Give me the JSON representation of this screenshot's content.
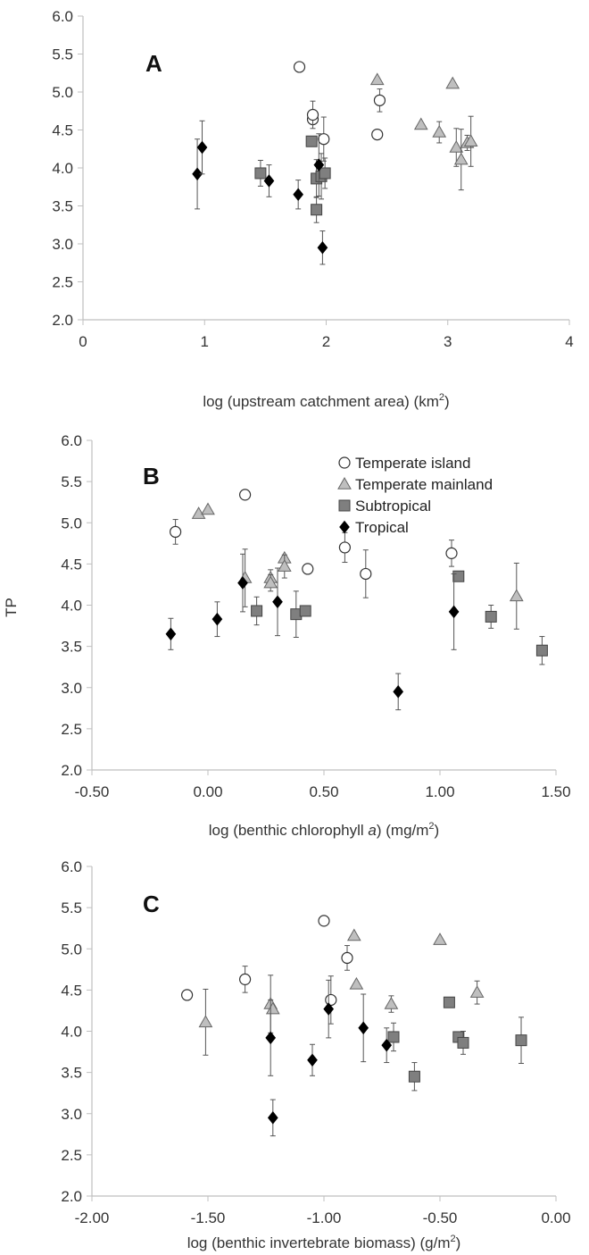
{
  "legend": [
    {
      "name": "Temperate island",
      "marker": "circle",
      "color": "#ffffff"
    },
    {
      "name": "Temperate mainland",
      "marker": "triangle",
      "color": "#bfbfbf"
    },
    {
      "name": "Subtropical",
      "marker": "square",
      "color": "#7f7f7f"
    },
    {
      "name": "Tropical",
      "marker": "diamond",
      "color": "#000000"
    }
  ],
  "chart_data": [
    {
      "type": "scatter",
      "panel_label": "A",
      "xlabel": "log (upstream catchment area) (km",
      "xlabel_sup": "2",
      "xlabel_after": ")",
      "ylabel": "",
      "xlim": [
        0,
        4
      ],
      "ylim": [
        2.0,
        6.0
      ],
      "xticks": [
        "0",
        "1",
        "2",
        "3",
        "4"
      ],
      "xtick_values": [
        0,
        1,
        2,
        3,
        4
      ],
      "yticks": [
        "2.0",
        "2.5",
        "3.0",
        "3.5",
        "4.0",
        "4.5",
        "5.0",
        "5.5",
        "6.0"
      ],
      "ytick_values": [
        2.0,
        2.5,
        3.0,
        3.5,
        4.0,
        4.5,
        5.0,
        5.5,
        6.0
      ],
      "grid": false,
      "legend_position": "none",
      "series": [
        {
          "name": "Temperate island",
          "points": [
            {
              "x": 1.78,
              "y": 5.33
            },
            {
              "x": 1.89,
              "y": 4.64,
              "err": 0.0
            },
            {
              "x": 1.89,
              "y": 4.7,
              "err": 0.18
            },
            {
              "x": 1.98,
              "y": 4.38,
              "err": 0.29
            },
            {
              "x": 2.42,
              "y": 4.44
            },
            {
              "x": 2.44,
              "y": 4.89,
              "err": 0.15
            }
          ]
        },
        {
          "name": "Temperate mainland",
          "points": [
            {
              "x": 2.42,
              "y": 5.16
            },
            {
              "x": 3.04,
              "y": 5.11
            },
            {
              "x": 2.78,
              "y": 4.57
            },
            {
              "x": 2.93,
              "y": 4.47,
              "err": 0.14
            },
            {
              "x": 3.07,
              "y": 4.27,
              "err": 0.25
            },
            {
              "x": 3.11,
              "y": 4.11,
              "err": 0.4
            },
            {
              "x": 3.16,
              "y": 4.33,
              "err": 0.1
            },
            {
              "x": 3.19,
              "y": 4.35,
              "err": 0.33
            }
          ]
        },
        {
          "name": "Subtropical",
          "points": [
            {
              "x": 1.46,
              "y": 3.93,
              "err": 0.17
            },
            {
              "x": 1.88,
              "y": 4.35
            },
            {
              "x": 1.92,
              "y": 3.86,
              "err": 0.25
            },
            {
              "x": 1.92,
              "y": 3.45,
              "err": 0.17
            },
            {
              "x": 1.96,
              "y": 3.89,
              "err": 0.3
            },
            {
              "x": 1.99,
              "y": 3.93,
              "err": 0.2
            }
          ]
        },
        {
          "name": "Tropical",
          "points": [
            {
              "x": 0.94,
              "y": 3.92,
              "err": 0.46
            },
            {
              "x": 0.98,
              "y": 4.27,
              "err": 0.35
            },
            {
              "x": 1.53,
              "y": 3.83,
              "err": 0.21
            },
            {
              "x": 1.77,
              "y": 3.65,
              "err": 0.19
            },
            {
              "x": 1.94,
              "y": 4.04,
              "err": 0.41
            },
            {
              "x": 1.97,
              "y": 2.95,
              "err": 0.22
            }
          ]
        }
      ]
    },
    {
      "type": "scatter",
      "panel_label": "B",
      "xlabel": "log (benthic chlorophyll ",
      "xlabel_italic": "a",
      "xlabel_after": ") (mg/m",
      "xlabel_sup": "2",
      "xlabel_end": ")",
      "ylabel": "TP",
      "xlim": [
        -0.5,
        1.5
      ],
      "ylim": [
        2.0,
        6.0
      ],
      "xticks": [
        "-0.50",
        "0.00",
        "0.50",
        "1.00",
        "1.50"
      ],
      "xtick_values": [
        -0.5,
        0.0,
        0.5,
        1.0,
        1.5
      ],
      "yticks": [
        "2.0",
        "2.5",
        "3.0",
        "3.5",
        "4.0",
        "4.5",
        "5.0",
        "5.5",
        "6.0"
      ],
      "ytick_values": [
        2.0,
        2.5,
        3.0,
        3.5,
        4.0,
        4.5,
        5.0,
        5.5,
        6.0
      ],
      "grid": false,
      "legend_position": "top-right",
      "series": [
        {
          "name": "Temperate island",
          "points": [
            {
              "x": -0.14,
              "y": 4.89,
              "err": 0.15
            },
            {
              "x": 0.16,
              "y": 5.34
            },
            {
              "x": 0.43,
              "y": 4.44
            },
            {
              "x": 0.59,
              "y": 4.7,
              "err": 0.18
            },
            {
              "x": 0.68,
              "y": 4.38,
              "err": 0.29
            },
            {
              "x": 1.05,
              "y": 4.63,
              "err": 0.16
            }
          ]
        },
        {
          "name": "Temperate mainland",
          "points": [
            {
              "x": -0.04,
              "y": 5.11
            },
            {
              "x": 0.0,
              "y": 5.16
            },
            {
              "x": 0.16,
              "y": 4.33,
              "err": 0.35
            },
            {
              "x": 0.27,
              "y": 4.33,
              "err": 0.1
            },
            {
              "x": 0.27,
              "y": 4.27,
              "err": 0.1
            },
            {
              "x": 0.33,
              "y": 4.57
            },
            {
              "x": 0.33,
              "y": 4.47,
              "err": 0.14
            },
            {
              "x": 1.33,
              "y": 4.11,
              "err": 0.4
            }
          ]
        },
        {
          "name": "Subtropical",
          "points": [
            {
              "x": 0.21,
              "y": 3.93,
              "err": 0.17
            },
            {
              "x": 0.38,
              "y": 3.89,
              "err": 0.28
            },
            {
              "x": 0.42,
              "y": 3.93
            },
            {
              "x": 1.08,
              "y": 4.35
            },
            {
              "x": 1.22,
              "y": 3.86,
              "err": 0.14
            },
            {
              "x": 1.44,
              "y": 3.45,
              "err": 0.17
            }
          ]
        },
        {
          "name": "Tropical",
          "points": [
            {
              "x": -0.16,
              "y": 3.65,
              "err": 0.19
            },
            {
              "x": 0.04,
              "y": 3.83,
              "err": 0.21
            },
            {
              "x": 0.15,
              "y": 4.27,
              "err": 0.35
            },
            {
              "x": 0.3,
              "y": 4.04,
              "err": 0.41
            },
            {
              "x": 0.82,
              "y": 2.95,
              "err": 0.22
            },
            {
              "x": 1.06,
              "y": 3.92,
              "err": 0.46
            }
          ]
        }
      ]
    },
    {
      "type": "scatter",
      "panel_label": "C",
      "xlabel": "log (benthic invertebrate biomass) (g/m",
      "xlabel_sup": "2",
      "xlabel_after": ")",
      "ylabel": "",
      "xlim": [
        -2.0,
        0.0
      ],
      "ylim": [
        2.0,
        6.0
      ],
      "xticks": [
        "-2.00",
        "-1.50",
        "-1.00",
        "-0.50",
        "0.00"
      ],
      "xtick_values": [
        -2.0,
        -1.5,
        -1.0,
        -0.5,
        0.0
      ],
      "yticks": [
        "2.0",
        "2.5",
        "3.0",
        "3.5",
        "4.0",
        "4.5",
        "5.0",
        "5.5",
        "6.0"
      ],
      "ytick_values": [
        2.0,
        2.5,
        3.0,
        3.5,
        4.0,
        4.5,
        5.0,
        5.5,
        6.0
      ],
      "grid": false,
      "legend_position": "none",
      "series": [
        {
          "name": "Temperate island",
          "points": [
            {
              "x": -1.59,
              "y": 4.44
            },
            {
              "x": -1.34,
              "y": 4.63,
              "err": 0.16
            },
            {
              "x": -1.0,
              "y": 5.34
            },
            {
              "x": -0.9,
              "y": 4.89,
              "err": 0.15
            },
            {
              "x": -0.97,
              "y": 4.38,
              "err": 0.29
            }
          ]
        },
        {
          "name": "Temperate mainland",
          "points": [
            {
              "x": -1.51,
              "y": 4.11,
              "err": 0.4
            },
            {
              "x": -1.23,
              "y": 4.33,
              "err": 0.35
            },
            {
              "x": -1.22,
              "y": 4.27
            },
            {
              "x": -0.87,
              "y": 5.16
            },
            {
              "x": -0.86,
              "y": 4.57
            },
            {
              "x": -0.71,
              "y": 4.33,
              "err": 0.1
            },
            {
              "x": -0.5,
              "y": 5.11
            },
            {
              "x": -0.34,
              "y": 4.47,
              "err": 0.14
            }
          ]
        },
        {
          "name": "Subtropical",
          "points": [
            {
              "x": -0.7,
              "y": 3.93,
              "err": 0.17
            },
            {
              "x": -0.61,
              "y": 3.45,
              "err": 0.17
            },
            {
              "x": -0.46,
              "y": 4.35
            },
            {
              "x": -0.42,
              "y": 3.93
            },
            {
              "x": -0.4,
              "y": 3.86,
              "err": 0.14
            },
            {
              "x": -0.15,
              "y": 3.89,
              "err": 0.28
            }
          ]
        },
        {
          "name": "Tropical",
          "points": [
            {
              "x": -1.23,
              "y": 3.92,
              "err": 0.46
            },
            {
              "x": -1.22,
              "y": 2.95,
              "err": 0.22
            },
            {
              "x": -1.05,
              "y": 3.65,
              "err": 0.19
            },
            {
              "x": -0.98,
              "y": 4.27,
              "err": 0.35
            },
            {
              "x": -0.83,
              "y": 4.04,
              "err": 0.41
            },
            {
              "x": -0.73,
              "y": 3.83,
              "err": 0.21
            }
          ]
        }
      ]
    }
  ]
}
